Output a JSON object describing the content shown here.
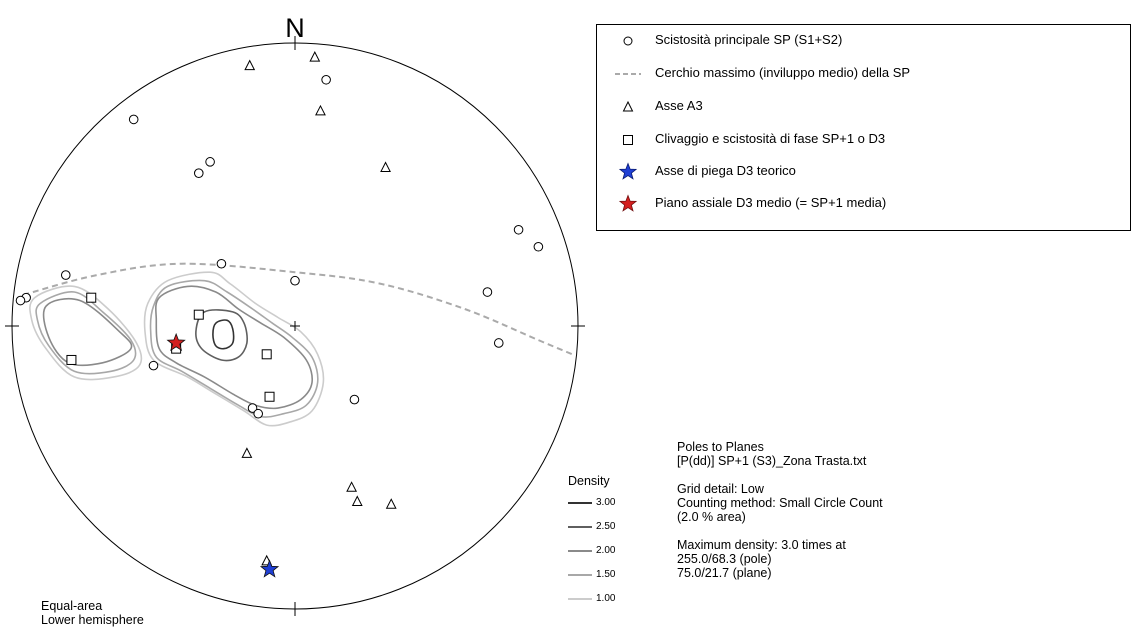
{
  "chart_data": {
    "type": "scatter",
    "chart_kind": "stereonet",
    "north_label": "N",
    "projection": [
      "Equal-area",
      "Lower hemisphere"
    ],
    "legend": {
      "placement": "top-right",
      "items": [
        {
          "symbol": "circle-open",
          "label": "Scistosità principale SP (S1+S2)"
        },
        {
          "symbol": "dashed-line",
          "label": "Cerchio massimo (inviluppo medio) della SP"
        },
        {
          "symbol": "triangle-open",
          "label": "Asse A3"
        },
        {
          "symbol": "square-open",
          "label": "Clivaggio e scistosità di fase SP+1 o D3"
        },
        {
          "symbol": "star-blue",
          "label": "Asse di piega D3 teorico"
        },
        {
          "symbol": "star-red",
          "label": "Piano assiale D3 medio (= SP+1 media)"
        }
      ]
    },
    "info_lines": [
      "Poles to Planes",
      "[P(dd)] SP+1 (S3)_Zona Trasta.txt",
      "",
      "Grid detail: Low",
      "Counting method: Small Circle Count",
      "(2.0 % area)",
      "",
      "Maximum density: 3.0 times at",
      "255.0/68.3 (pole)",
      "75.0/21.7 (plane)"
    ],
    "density": {
      "title": "Density",
      "levels": [
        {
          "value": 3.0,
          "label": "3.00",
          "color": "#333333"
        },
        {
          "value": 2.5,
          "label": "2.50",
          "color": "#5f5f5f"
        },
        {
          "value": 2.0,
          "label": "2.00",
          "color": "#8a8a8a"
        },
        {
          "value": 1.5,
          "label": "1.50",
          "color": "#a8a8a8"
        },
        {
          "value": 1.0,
          "label": "1.00",
          "color": "#cccccc"
        }
      ]
    },
    "x_range": [
      -1,
      1
    ],
    "y_range": [
      -1,
      1
    ],
    "series": [
      {
        "name": "Scistosità principale SP (S1+S2)",
        "marker": "circle",
        "points": [
          [
            0.11,
            0.87
          ],
          [
            -0.57,
            0.73
          ],
          [
            -0.3,
            0.58
          ],
          [
            -0.34,
            0.54
          ],
          [
            0.79,
            0.34
          ],
          [
            0.86,
            0.28
          ],
          [
            -0.81,
            0.18
          ],
          [
            -0.26,
            0.22
          ],
          [
            0.0,
            0.16
          ],
          [
            -0.95,
            0.1
          ],
          [
            -0.97,
            0.09
          ],
          [
            0.68,
            0.12
          ],
          [
            0.72,
            -0.06
          ],
          [
            -0.5,
            -0.14
          ],
          [
            0.21,
            -0.26
          ],
          [
            -0.15,
            -0.29
          ],
          [
            -0.13,
            -0.31
          ]
        ]
      },
      {
        "name": "Asse A3",
        "marker": "triangle",
        "points": [
          [
            -0.16,
            0.92
          ],
          [
            0.07,
            0.95
          ],
          [
            0.09,
            0.76
          ],
          [
            0.32,
            0.56
          ],
          [
            -0.17,
            -0.45
          ],
          [
            0.2,
            -0.57
          ],
          [
            0.22,
            -0.62
          ],
          [
            0.34,
            -0.63
          ],
          [
            -0.1,
            -0.83
          ]
        ]
      },
      {
        "name": "Clivaggio e scistosità di fase SP+1 o D3",
        "marker": "square",
        "points": [
          [
            -0.72,
            0.1
          ],
          [
            -0.34,
            0.04
          ],
          [
            -0.79,
            -0.12
          ],
          [
            -0.42,
            -0.08
          ],
          [
            -0.1,
            -0.1
          ],
          [
            -0.09,
            -0.25
          ]
        ]
      },
      {
        "name": "Asse di piega D3 teorico",
        "marker": "star",
        "color": "#1f3fd4",
        "points": [
          [
            -0.09,
            -0.86
          ]
        ]
      },
      {
        "name": "Piano assiale D3 medio (= SP+1 media)",
        "marker": "star",
        "color": "#d41f1f",
        "points": [
          [
            -0.42,
            -0.06
          ]
        ]
      }
    ],
    "great_circle": {
      "name": "Cerchio massimo (inviluppo medio) della SP",
      "style": "dashed",
      "color": "#aaaaaa",
      "points": [
        [
          -0.96,
          0.11
        ],
        [
          -0.7,
          0.18
        ],
        [
          -0.4,
          0.22
        ],
        [
          0.0,
          0.19
        ],
        [
          0.3,
          0.15
        ],
        [
          0.6,
          0.06
        ],
        [
          0.86,
          -0.05
        ],
        [
          0.98,
          -0.1
        ]
      ]
    },
    "contours": [
      {
        "level": 1.0,
        "color": "#cccccc",
        "points": [
          [
            -0.45,
            0.16
          ],
          [
            -0.3,
            0.19
          ],
          [
            -0.23,
            0.15
          ],
          [
            -0.14,
            0.08
          ],
          [
            -0.06,
            0.03
          ],
          [
            0.02,
            -0.02
          ],
          [
            0.08,
            -0.1
          ],
          [
            0.1,
            -0.2
          ],
          [
            0.06,
            -0.3
          ],
          [
            -0.02,
            -0.34
          ],
          [
            -0.1,
            -0.35
          ],
          [
            -0.18,
            -0.3
          ],
          [
            -0.28,
            -0.24
          ],
          [
            -0.38,
            -0.18
          ],
          [
            -0.5,
            -0.12
          ],
          [
            -0.53,
            -0.02
          ],
          [
            -0.52,
            0.08
          ]
        ]
      },
      {
        "level": 1.0,
        "color": "#cccccc",
        "points": [
          [
            -0.92,
            0.1
          ],
          [
            -0.78,
            0.14
          ],
          [
            -0.66,
            0.06
          ],
          [
            -0.56,
            -0.06
          ],
          [
            -0.55,
            -0.14
          ],
          [
            -0.64,
            -0.18
          ],
          [
            -0.78,
            -0.18
          ],
          [
            -0.88,
            -0.08
          ],
          [
            -0.93,
            0.02
          ]
        ]
      },
      {
        "level": 1.5,
        "color": "#a8a8a8",
        "points": [
          [
            -0.45,
            0.14
          ],
          [
            -0.32,
            0.16
          ],
          [
            -0.24,
            0.12
          ],
          [
            -0.15,
            0.06
          ],
          [
            -0.08,
            0.01
          ],
          [
            -0.01,
            -0.04
          ],
          [
            0.06,
            -0.11
          ],
          [
            0.08,
            -0.2
          ],
          [
            0.04,
            -0.28
          ],
          [
            -0.04,
            -0.31
          ],
          [
            -0.12,
            -0.32
          ],
          [
            -0.2,
            -0.28
          ],
          [
            -0.3,
            -0.22
          ],
          [
            -0.4,
            -0.16
          ],
          [
            -0.49,
            -0.11
          ],
          [
            -0.51,
            -0.02
          ],
          [
            -0.5,
            0.07
          ]
        ]
      },
      {
        "level": 1.5,
        "color": "#a8a8a8",
        "points": [
          [
            -0.9,
            0.08
          ],
          [
            -0.78,
            0.12
          ],
          [
            -0.68,
            0.05
          ],
          [
            -0.58,
            -0.05
          ],
          [
            -0.57,
            -0.12
          ],
          [
            -0.65,
            -0.16
          ],
          [
            -0.78,
            -0.16
          ],
          [
            -0.87,
            -0.07
          ],
          [
            -0.91,
            0.02
          ]
        ]
      },
      {
        "level": 2.0,
        "color": "#8a8a8a",
        "points": [
          [
            -0.48,
            0.1
          ],
          [
            -0.38,
            0.14
          ],
          [
            -0.28,
            0.12
          ],
          [
            -0.2,
            0.06
          ],
          [
            -0.12,
            0.01
          ],
          [
            -0.04,
            -0.04
          ],
          [
            0.04,
            -0.12
          ],
          [
            0.06,
            -0.2
          ],
          [
            0.02,
            -0.26
          ],
          [
            -0.06,
            -0.29
          ],
          [
            -0.14,
            -0.28
          ],
          [
            -0.22,
            -0.24
          ],
          [
            -0.32,
            -0.18
          ],
          [
            -0.42,
            -0.13
          ],
          [
            -0.48,
            -0.08
          ],
          [
            -0.49,
            0.02
          ]
        ]
      },
      {
        "level": 2.0,
        "color": "#8a8a8a",
        "points": [
          [
            -0.88,
            0.07
          ],
          [
            -0.76,
            0.09
          ],
          [
            -0.62,
            -0.02
          ],
          [
            -0.58,
            -0.08
          ],
          [
            -0.68,
            -0.13
          ],
          [
            -0.8,
            -0.13
          ],
          [
            -0.87,
            -0.04
          ]
        ]
      },
      {
        "level": 2.5,
        "color": "#5f5f5f",
        "points": [
          [
            -0.32,
            0.05
          ],
          [
            -0.22,
            0.05
          ],
          [
            -0.18,
            0.01
          ],
          [
            -0.17,
            -0.06
          ],
          [
            -0.2,
            -0.11
          ],
          [
            -0.26,
            -0.12
          ],
          [
            -0.33,
            -0.08
          ],
          [
            -0.35,
            -0.02
          ]
        ]
      },
      {
        "level": 3.0,
        "color": "#333333",
        "points": [
          [
            -0.28,
            0.01
          ],
          [
            -0.24,
            0.02
          ],
          [
            -0.22,
            -0.01
          ],
          [
            -0.22,
            -0.06
          ],
          [
            -0.25,
            -0.08
          ],
          [
            -0.28,
            -0.07
          ],
          [
            -0.29,
            -0.03
          ]
        ]
      }
    ]
  }
}
